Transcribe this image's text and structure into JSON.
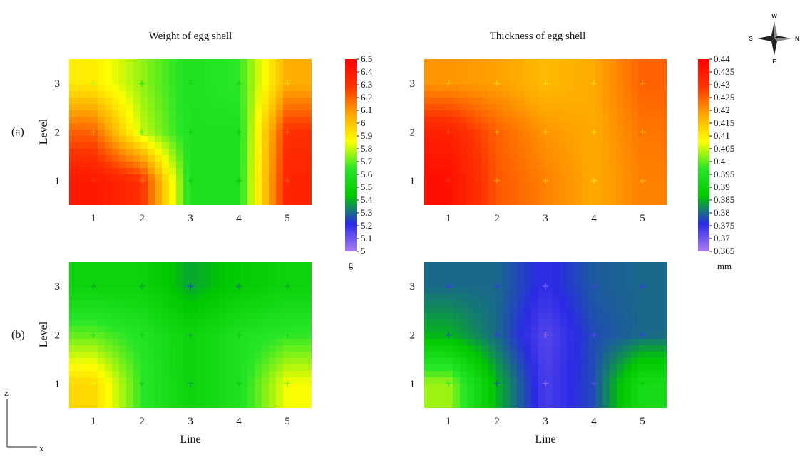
{
  "panel_labels": {
    "a": "(a)",
    "b": "(b)"
  },
  "axes": {
    "ylabel": "Level",
    "xlabel": "Line",
    "corner_z": "z",
    "corner_x": "x"
  },
  "compass": {
    "n": "W",
    "s": "E",
    "w": "S",
    "e": "N"
  },
  "chart_data": [
    {
      "id": "a-weight",
      "type": "heatmap",
      "title": "Weight of egg shell",
      "x": [
        1,
        2,
        3,
        4,
        5
      ],
      "y": [
        1,
        2,
        3
      ],
      "xlim": [
        0.5,
        5.5
      ],
      "ylim": [
        0.5,
        3.5
      ],
      "z": [
        [
          6.4,
          6.3,
          5.6,
          5.6,
          6.35
        ],
        [
          6.2,
          5.8,
          5.6,
          5.6,
          6.3
        ],
        [
          5.9,
          5.75,
          5.6,
          5.65,
          6.05
        ]
      ],
      "colorscale": [
        "#a97cf2",
        "#2a2ae6",
        "#00c800",
        "#27e627",
        "#ffff00",
        "#ffa500",
        "#ff3300",
        "#ff0000"
      ],
      "zlim": [
        5.0,
        6.5
      ],
      "colorbar": "shared-weight",
      "xlabel": "",
      "ylabel": "Level"
    },
    {
      "id": "a-thickness",
      "type": "heatmap",
      "title": "Thickness of egg shell",
      "x": [
        1,
        2,
        3,
        4,
        5
      ],
      "y": [
        1,
        2,
        3
      ],
      "xlim": [
        0.5,
        5.5
      ],
      "ylim": [
        0.5,
        3.5
      ],
      "z": [
        [
          0.437,
          0.426,
          0.422,
          0.418,
          0.422
        ],
        [
          0.433,
          0.425,
          0.42,
          0.418,
          0.423
        ],
        [
          0.42,
          0.419,
          0.416,
          0.418,
          0.425
        ]
      ],
      "colorscale": [
        "#a97cf2",
        "#2a2ae6",
        "#00c800",
        "#27e627",
        "#ffff00",
        "#ffa500",
        "#ff3300",
        "#ff0000"
      ],
      "zlim": [
        0.365,
        0.44
      ],
      "colorbar": "shared-thickness",
      "xlabel": "",
      "ylabel": ""
    },
    {
      "id": "b-weight",
      "type": "heatmap",
      "title": "",
      "x": [
        1,
        2,
        3,
        4,
        5
      ],
      "y": [
        1,
        2,
        3
      ],
      "xlim": [
        0.5,
        5.5
      ],
      "ylim": [
        0.5,
        3.5
      ],
      "z": [
        [
          5.95,
          5.65,
          5.5,
          5.6,
          5.85
        ],
        [
          5.7,
          5.62,
          5.5,
          5.6,
          5.65
        ],
        [
          5.5,
          5.5,
          5.38,
          5.45,
          5.5
        ]
      ],
      "colorscale": [
        "#a97cf2",
        "#2a2ae6",
        "#00c800",
        "#27e627",
        "#ffff00",
        "#ffa500",
        "#ff3300",
        "#ff0000"
      ],
      "zlim": [
        5.0,
        6.5
      ],
      "colorbar": "shared-weight",
      "xlabel": "Line",
      "ylabel": "Level"
    },
    {
      "id": "b-thickness",
      "type": "heatmap",
      "title": "",
      "x": [
        1,
        2,
        3,
        4,
        5
      ],
      "y": [
        1,
        2,
        3
      ],
      "xlim": [
        0.5,
        5.5
      ],
      "ylim": [
        0.5,
        3.5
      ],
      "z": [
        [
          0.403,
          0.385,
          0.373,
          0.378,
          0.393
        ],
        [
          0.385,
          0.38,
          0.372,
          0.378,
          0.38
        ],
        [
          0.38,
          0.38,
          0.375,
          0.379,
          0.38
        ]
      ],
      "colorscale": [
        "#a97cf2",
        "#2a2ae6",
        "#00c800",
        "#27e627",
        "#ffff00",
        "#ffa500",
        "#ff3300",
        "#ff0000"
      ],
      "zlim": [
        0.365,
        0.44
      ],
      "colorbar": "shared-thickness",
      "xlabel": "Line",
      "ylabel": ""
    }
  ],
  "colorbars": {
    "shared-weight": {
      "unit": "g",
      "ticks": [
        "6.5",
        "6.4",
        "6.3",
        "6.2",
        "6.1",
        "6",
        "5.9",
        "5.8",
        "5.7",
        "5.6",
        "5.5",
        "5.4",
        "5.3",
        "5.2",
        "5.1",
        "5"
      ]
    },
    "shared-thickness": {
      "unit": "mm",
      "ticks": [
        "0.44",
        "0.435",
        "0.43",
        "0.425",
        "0.42",
        "0.415",
        "0.41",
        "0.405",
        "0.4",
        "0.395",
        "0.39",
        "0.385",
        "0.38",
        "0.375",
        "0.37",
        "0.365"
      ]
    }
  }
}
